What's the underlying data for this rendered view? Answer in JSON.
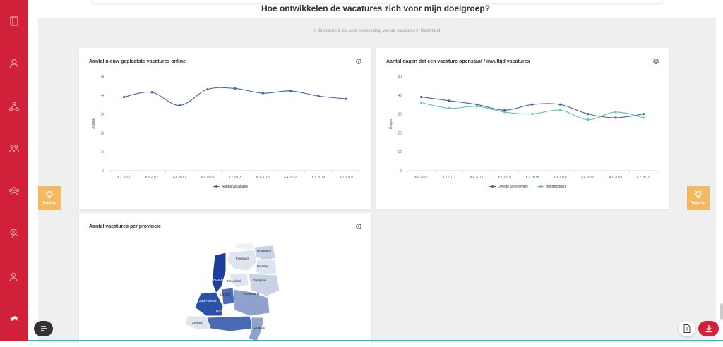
{
  "colors": {
    "sidebar": "#d0203a",
    "series_blue": "#3f63a6",
    "series_green": "#5cc9a1",
    "tip": "#f5b961",
    "download": "#d0203a",
    "accent_line": "#36b7b4"
  },
  "sidebar": {
    "items": [
      {
        "icon": "vacancy-book-icon"
      },
      {
        "icon": "candidate-profile-icon"
      },
      {
        "icon": "network-icon"
      },
      {
        "icon": "team-icon"
      },
      {
        "icon": "group-icon"
      },
      {
        "icon": "skills-icon"
      },
      {
        "icon": "person-search-icon"
      },
      {
        "icon": "logo-icon"
      }
    ]
  },
  "header": {
    "title": "Hoe ontwikkelen de vacatures zich voor mijn doelgroep?"
  },
  "intro": "In dit overzicht ziet u de ontwikkeling van de vacatures in Nederland.",
  "tips": {
    "label": "Team tip"
  },
  "chart_data": [
    {
      "type": "line",
      "title": "Aantal nieuw geplaatste vacatures online",
      "categories": [
        "K2 2017",
        "K3 2017",
        "K4 2017",
        "K1 2018",
        "K2 2018",
        "K3 2018",
        "K4 2018",
        "K1 2019",
        "K2 2019"
      ],
      "yticks": [
        "0",
        "1k",
        "2k",
        "3k",
        "4k",
        "5k"
      ],
      "ylim": [
        0,
        5000
      ],
      "ylabel": "Aantal",
      "xlabel": "",
      "legend_position": "bottom",
      "grid": false,
      "series": [
        {
          "name": "Aantal vacatures",
          "color": "#3f63a6",
          "values": [
            3900,
            4150,
            3450,
            4300,
            4350,
            4100,
            4220,
            3950,
            3800
          ]
        }
      ]
    },
    {
      "type": "line",
      "title": "Aantal dagen dat een vacature openstaat / invultijd vacatures",
      "categories": [
        "K2 2017",
        "K3 2017",
        "K4 2017",
        "K1 2018",
        "K2 2018",
        "K3 2018",
        "K4 2018",
        "K1 2019",
        "K2 2019"
      ],
      "yticks": [
        "0",
        "10",
        "20",
        "30",
        "40",
        "50"
      ],
      "ylim": [
        0,
        50
      ],
      "ylabel": "Dagen",
      "xlabel": "",
      "legend_position": "bottom",
      "grid": false,
      "series": [
        {
          "name": "Directe werkgevers",
          "color": "#3f63a6",
          "values": [
            39,
            37,
            35,
            32,
            35,
            35,
            30,
            28,
            30
          ]
        },
        {
          "name": "Intermediairs",
          "color": "#5cc9a1",
          "values": [
            36,
            33,
            34,
            31,
            30,
            32,
            27,
            31,
            28
          ]
        }
      ]
    }
  ],
  "map": {
    "title": "Aantal vacatures per provincie",
    "provinces": [
      {
        "name": "Groningen",
        "shade": "#c9d3e6"
      },
      {
        "name": "Friesland",
        "shade": "#dfe5f0"
      },
      {
        "name": "Drenthe",
        "shade": "#dfe5f0"
      },
      {
        "name": "Noord-Holland",
        "shade": "#1d3f9b"
      },
      {
        "name": "Overijssel",
        "shade": "#c9d3e6"
      },
      {
        "name": "Flevoland",
        "shade": "#dfe5f0"
      },
      {
        "name": "Gelderland",
        "shade": "#8fa2cd"
      },
      {
        "name": "Utrecht",
        "shade": "#4a6bb3"
      },
      {
        "name": "Zuid-Holland",
        "shade": "#2b50a8"
      },
      {
        "name": "Noord-Brabant",
        "shade": "#4a6bb3"
      },
      {
        "name": "Zeeland",
        "shade": "#dfe5f0"
      },
      {
        "name": "Limburg",
        "shade": "#8fa2cd"
      }
    ]
  }
}
